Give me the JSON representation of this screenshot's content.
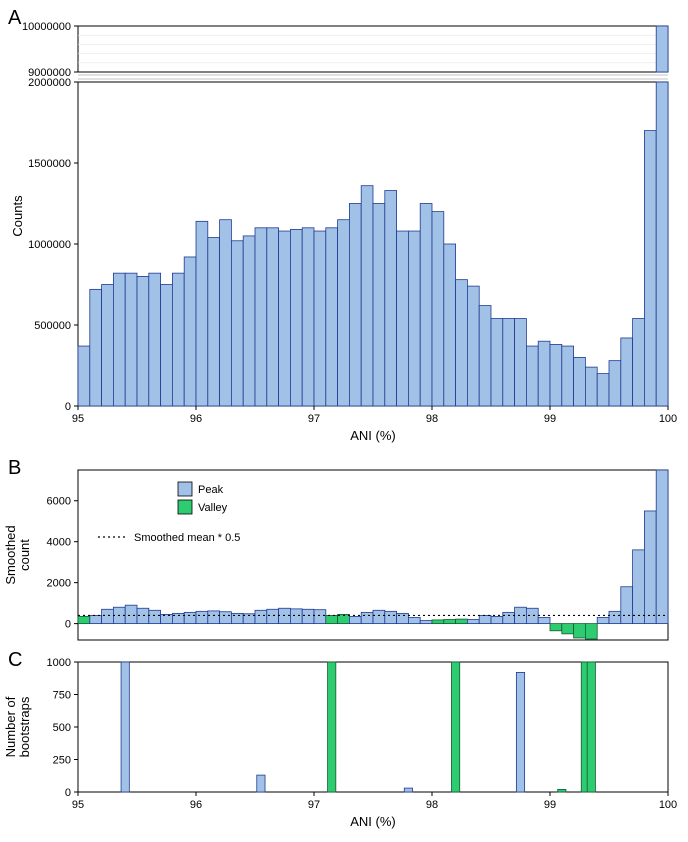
{
  "colors": {
    "peak_fill": "#a1c1e6",
    "peak_stroke": "#1f3a93",
    "valley_fill": "#2ecc71",
    "valley_stroke": "#145a32",
    "axis": "#000000",
    "panel_bg": "#ffffff",
    "panel_border": "#000000",
    "dotted": "#000000",
    "grid_light": "#e6e6e6"
  },
  "panelA": {
    "label": "A",
    "xlabel": "ANI (%)",
    "ylabel": "Counts",
    "xlim": [
      95,
      100
    ],
    "lower_ylim": [
      0,
      2000000
    ],
    "upper_ylim": [
      9000000,
      10000000
    ],
    "xticks": [
      95,
      96,
      97,
      98,
      99,
      100
    ],
    "lower_yticks": [
      0,
      500000,
      1000000,
      1500000,
      2000000
    ],
    "upper_yticks": [
      9000000,
      10000000
    ],
    "bar_width": 0.1,
    "bins": [
      {
        "x": 95.0,
        "v": 370000
      },
      {
        "x": 95.1,
        "v": 720000
      },
      {
        "x": 95.2,
        "v": 750000
      },
      {
        "x": 95.3,
        "v": 820000
      },
      {
        "x": 95.4,
        "v": 820000
      },
      {
        "x": 95.5,
        "v": 800000
      },
      {
        "x": 95.6,
        "v": 820000
      },
      {
        "x": 95.7,
        "v": 750000
      },
      {
        "x": 95.8,
        "v": 820000
      },
      {
        "x": 95.9,
        "v": 920000
      },
      {
        "x": 96.0,
        "v": 1140000
      },
      {
        "x": 96.1,
        "v": 1040000
      },
      {
        "x": 96.2,
        "v": 1150000
      },
      {
        "x": 96.3,
        "v": 1020000
      },
      {
        "x": 96.4,
        "v": 1050000
      },
      {
        "x": 96.5,
        "v": 1100000
      },
      {
        "x": 96.6,
        "v": 1100000
      },
      {
        "x": 96.7,
        "v": 1080000
      },
      {
        "x": 96.8,
        "v": 1090000
      },
      {
        "x": 96.9,
        "v": 1100000
      },
      {
        "x": 97.0,
        "v": 1080000
      },
      {
        "x": 97.1,
        "v": 1100000
      },
      {
        "x": 97.2,
        "v": 1150000
      },
      {
        "x": 97.3,
        "v": 1250000
      },
      {
        "x": 97.4,
        "v": 1360000
      },
      {
        "x": 97.5,
        "v": 1250000
      },
      {
        "x": 97.6,
        "v": 1330000
      },
      {
        "x": 97.7,
        "v": 1080000
      },
      {
        "x": 97.8,
        "v": 1080000
      },
      {
        "x": 97.9,
        "v": 1250000
      },
      {
        "x": 98.0,
        "v": 1200000
      },
      {
        "x": 98.1,
        "v": 1000000
      },
      {
        "x": 98.2,
        "v": 780000
      },
      {
        "x": 98.3,
        "v": 740000
      },
      {
        "x": 98.4,
        "v": 620000
      },
      {
        "x": 98.5,
        "v": 540000
      },
      {
        "x": 98.6,
        "v": 540000
      },
      {
        "x": 98.7,
        "v": 540000
      },
      {
        "x": 98.8,
        "v": 370000
      },
      {
        "x": 98.9,
        "v": 400000
      },
      {
        "x": 99.0,
        "v": 380000
      },
      {
        "x": 99.1,
        "v": 370000
      },
      {
        "x": 99.2,
        "v": 300000
      },
      {
        "x": 99.3,
        "v": 240000
      },
      {
        "x": 99.4,
        "v": 200000
      },
      {
        "x": 99.5,
        "v": 280000
      },
      {
        "x": 99.6,
        "v": 420000
      },
      {
        "x": 99.7,
        "v": 540000
      },
      {
        "x": 99.8,
        "v": 1700000
      },
      {
        "x": 99.9,
        "v": 10000000
      }
    ]
  },
  "panelB": {
    "label": "B",
    "ylabel": "Smoothed\ncount",
    "ylim": [
      -800,
      7500
    ],
    "yticks": [
      0,
      2000,
      4000,
      6000
    ],
    "xlim": [
      95,
      100
    ],
    "bar_width": 0.1,
    "legend": {
      "peak": "Peak",
      "valley": "Valley",
      "smoothed": "Smoothed mean * 0.5",
      "dotted_y": 400
    },
    "bars": [
      {
        "x": 95.0,
        "v": 350,
        "t": "valley"
      },
      {
        "x": 95.1,
        "v": 400,
        "t": "peak"
      },
      {
        "x": 95.2,
        "v": 700,
        "t": "peak"
      },
      {
        "x": 95.3,
        "v": 800,
        "t": "peak"
      },
      {
        "x": 95.4,
        "v": 900,
        "t": "peak"
      },
      {
        "x": 95.5,
        "v": 750,
        "t": "peak"
      },
      {
        "x": 95.6,
        "v": 650,
        "t": "peak"
      },
      {
        "x": 95.7,
        "v": 450,
        "t": "peak"
      },
      {
        "x": 95.8,
        "v": 500,
        "t": "peak"
      },
      {
        "x": 95.9,
        "v": 550,
        "t": "peak"
      },
      {
        "x": 96.0,
        "v": 600,
        "t": "peak"
      },
      {
        "x": 96.1,
        "v": 620,
        "t": "peak"
      },
      {
        "x": 96.2,
        "v": 580,
        "t": "peak"
      },
      {
        "x": 96.3,
        "v": 500,
        "t": "peak"
      },
      {
        "x": 96.4,
        "v": 480,
        "t": "peak"
      },
      {
        "x": 96.5,
        "v": 650,
        "t": "peak"
      },
      {
        "x": 96.6,
        "v": 700,
        "t": "peak"
      },
      {
        "x": 96.7,
        "v": 750,
        "t": "peak"
      },
      {
        "x": 96.8,
        "v": 720,
        "t": "peak"
      },
      {
        "x": 96.9,
        "v": 700,
        "t": "peak"
      },
      {
        "x": 97.0,
        "v": 680,
        "t": "peak"
      },
      {
        "x": 97.1,
        "v": 400,
        "t": "valley"
      },
      {
        "x": 97.2,
        "v": 450,
        "t": "valley"
      },
      {
        "x": 97.3,
        "v": 350,
        "t": "peak"
      },
      {
        "x": 97.4,
        "v": 550,
        "t": "peak"
      },
      {
        "x": 97.5,
        "v": 650,
        "t": "peak"
      },
      {
        "x": 97.6,
        "v": 600,
        "t": "peak"
      },
      {
        "x": 97.7,
        "v": 500,
        "t": "peak"
      },
      {
        "x": 97.8,
        "v": 300,
        "t": "peak"
      },
      {
        "x": 97.9,
        "v": 150,
        "t": "peak"
      },
      {
        "x": 98.0,
        "v": 180,
        "t": "valley"
      },
      {
        "x": 98.1,
        "v": 200,
        "t": "valley"
      },
      {
        "x": 98.2,
        "v": 220,
        "t": "valley"
      },
      {
        "x": 98.3,
        "v": 200,
        "t": "peak"
      },
      {
        "x": 98.4,
        "v": 400,
        "t": "peak"
      },
      {
        "x": 98.5,
        "v": 350,
        "t": "peak"
      },
      {
        "x": 98.6,
        "v": 550,
        "t": "peak"
      },
      {
        "x": 98.7,
        "v": 800,
        "t": "peak"
      },
      {
        "x": 98.8,
        "v": 750,
        "t": "peak"
      },
      {
        "x": 98.9,
        "v": 300,
        "t": "peak"
      },
      {
        "x": 99.0,
        "v": -350,
        "t": "valley"
      },
      {
        "x": 99.1,
        "v": -500,
        "t": "valley"
      },
      {
        "x": 99.2,
        "v": -700,
        "t": "valley"
      },
      {
        "x": 99.3,
        "v": -750,
        "t": "valley"
      },
      {
        "x": 99.4,
        "v": 300,
        "t": "peak"
      },
      {
        "x": 99.5,
        "v": 600,
        "t": "peak"
      },
      {
        "x": 99.6,
        "v": 1800,
        "t": "peak"
      },
      {
        "x": 99.7,
        "v": 3600,
        "t": "peak"
      },
      {
        "x": 99.8,
        "v": 5500,
        "t": "peak"
      },
      {
        "x": 99.9,
        "v": 7500,
        "t": "peak"
      }
    ]
  },
  "panelC": {
    "label": "C",
    "xlabel": "ANI (%)",
    "ylabel": "Number of\nbootstraps",
    "xlim": [
      95,
      100
    ],
    "ylim": [
      0,
      1000
    ],
    "yticks": [
      0,
      250,
      500,
      750,
      1000
    ],
    "xticks": [
      95,
      96,
      97,
      98,
      99,
      100
    ],
    "bar_width": 0.07,
    "bars": [
      {
        "x": 95.4,
        "v": 1000,
        "t": "peak"
      },
      {
        "x": 96.55,
        "v": 130,
        "t": "peak"
      },
      {
        "x": 97.15,
        "v": 1000,
        "t": "valley"
      },
      {
        "x": 97.8,
        "v": 30,
        "t": "peak"
      },
      {
        "x": 98.2,
        "v": 1000,
        "t": "valley"
      },
      {
        "x": 98.75,
        "v": 920,
        "t": "peak"
      },
      {
        "x": 99.1,
        "v": 20,
        "t": "valley"
      },
      {
        "x": 99.3,
        "v": 1000,
        "t": "valley"
      },
      {
        "x": 99.35,
        "v": 1000,
        "t": "valley"
      }
    ]
  }
}
